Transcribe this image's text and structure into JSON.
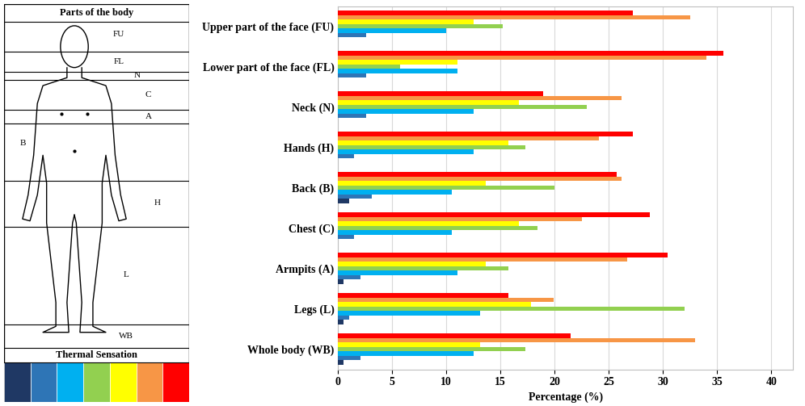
{
  "chart_data": {
    "type": "bar",
    "orientation": "horizontal",
    "categories": [
      "Upper part of the face (FU)",
      "Lower part of the face (FL)",
      "Neck (N)",
      "Hands (H)",
      "Back (B)",
      "Chest (C)",
      "Armpits (A)",
      "Legs (L)",
      "Whole body (WB)"
    ],
    "series": [
      {
        "color": "#1f3864",
        "values": [
          0,
          0,
          0,
          0,
          1.0,
          0,
          0.5,
          0.5,
          0.5
        ]
      },
      {
        "color": "#2e75b6",
        "values": [
          2.6,
          2.6,
          2.6,
          1.5,
          3.1,
          1.5,
          2.1,
          1.0,
          2.1
        ]
      },
      {
        "color": "#00b0f0",
        "values": [
          10.0,
          11.0,
          12.5,
          12.5,
          10.5,
          10.5,
          11.0,
          13.1,
          12.5
        ]
      },
      {
        "color": "#92d050",
        "values": [
          15.2,
          5.7,
          23.0,
          17.3,
          20.0,
          18.4,
          15.7,
          32.0,
          17.3
        ]
      },
      {
        "color": "#ffff00",
        "values": [
          12.5,
          11.0,
          16.7,
          15.7,
          13.6,
          16.7,
          13.6,
          17.8,
          13.1
        ]
      },
      {
        "color": "#f79646",
        "values": [
          32.5,
          34.0,
          26.2,
          24.1,
          26.2,
          22.5,
          26.7,
          19.9,
          33.0
        ]
      },
      {
        "color": "#ff0000",
        "values": [
          27.2,
          35.6,
          18.9,
          27.2,
          25.7,
          28.8,
          30.4,
          15.7,
          21.5
        ]
      }
    ],
    "x_label": "Percentage (%)",
    "xlim": [
      0,
      42
    ],
    "xticks": [
      0,
      5,
      10,
      15,
      20,
      25,
      30,
      35,
      40
    ],
    "grid": true
  },
  "body_diagram": {
    "title": "Parts of the body",
    "region_labels": [
      "FU",
      "FL",
      "N",
      "C",
      "A",
      "B",
      "H",
      "L",
      "WB"
    ],
    "legend_title": "Thermal Sensation"
  }
}
